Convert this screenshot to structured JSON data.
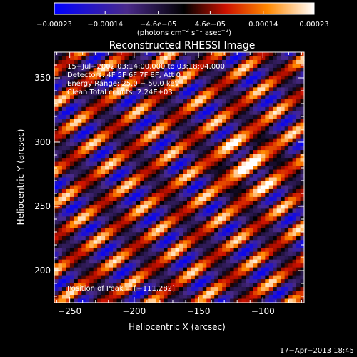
{
  "chart_data": {
    "type": "heatmap",
    "title": "Reconstructed RHESSI Image",
    "xlabel": "Heliocentric X (arcsec)",
    "ylabel": "Heliocentric Y (arcsec)",
    "xlim": [
      -262,
      -68
    ],
    "ylim": [
      175,
      370
    ],
    "x_ticks": [
      -250,
      -200,
      -150,
      -100
    ],
    "x_tick_labels": [
      "−250",
      "−200",
      "−150",
      "−100"
    ],
    "y_ticks": [
      200,
      250,
      300,
      350
    ],
    "y_tick_labels": [
      "200",
      "250",
      "300",
      "350"
    ],
    "colorbar": {
      "range": [
        -0.00023,
        0.00023
      ],
      "ticks": [
        -0.00023,
        -0.00014,
        -4.6e-05,
        4.6e-05,
        0.00014,
        0.00023
      ],
      "tick_labels": [
        "−0.00023",
        "−0.00014",
        "−4.6e−05",
        "4.6e−05",
        "0.00014",
        "0.00023"
      ],
      "units_text": "(photons cm",
      "units_sup1": "−2",
      "units_mid": " s",
      "units_sup2": "−1",
      "units_mid2": " asec",
      "units_sup3": "−2",
      "units_end": ")"
    },
    "annotations": [
      "15−Jul−2002 03:14:00.000 to 03:18:04.000",
      "Detectors: 4F 5F 6F 7F 8F, Att 0",
      "Energy Range: 25.0 − 50.0 keV",
      "Clean     Total counts: 2.24E+03"
    ],
    "peak_label": "Position of Peak = [−111,282]",
    "peak": [
      -111,
      282
    ],
    "footer": "17−Apr−2013 18:45",
    "grid": false,
    "colormap": [
      "#0000ff",
      "#3a1f7a",
      "#000000",
      "#cc1100",
      "#ff8800",
      "#ffffff"
    ]
  }
}
